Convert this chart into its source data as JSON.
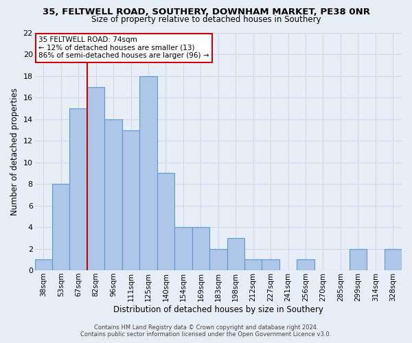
{
  "title": "35, FELTWELL ROAD, SOUTHERY, DOWNHAM MARKET, PE38 0NR",
  "subtitle": "Size of property relative to detached houses in Southery",
  "xlabel": "Distribution of detached houses by size in Southery",
  "ylabel": "Number of detached properties",
  "bin_labels": [
    "38sqm",
    "53sqm",
    "67sqm",
    "82sqm",
    "96sqm",
    "111sqm",
    "125sqm",
    "140sqm",
    "154sqm",
    "169sqm",
    "183sqm",
    "198sqm",
    "212sqm",
    "227sqm",
    "241sqm",
    "256sqm",
    "270sqm",
    "285sqm",
    "299sqm",
    "314sqm",
    "328sqm"
  ],
  "bar_values": [
    1,
    8,
    15,
    17,
    14,
    13,
    18,
    9,
    4,
    4,
    2,
    3,
    1,
    1,
    0,
    1,
    0,
    0,
    2,
    0,
    2
  ],
  "bar_color": "#aec6e8",
  "bar_edge_color": "#5b9bd5",
  "ylim": [
    0,
    22
  ],
  "yticks": [
    0,
    2,
    4,
    6,
    8,
    10,
    12,
    14,
    16,
    18,
    20,
    22
  ],
  "property_label": "35 FELTWELL ROAD: 74sqm",
  "annotation_line1": "← 12% of detached houses are smaller (13)",
  "annotation_line2": "86% of semi-detached houses are larger (96) →",
  "vline_color": "#cc0000",
  "annotation_box_color": "#ffffff",
  "annotation_box_edge_color": "#cc0000",
  "grid_color": "#d0d8e8",
  "background_color": "#e8eef8",
  "footer_line1": "Contains HM Land Registry data © Crown copyright and database right 2024.",
  "footer_line2": "Contains public sector information licensed under the Open Government Licence v3.0."
}
